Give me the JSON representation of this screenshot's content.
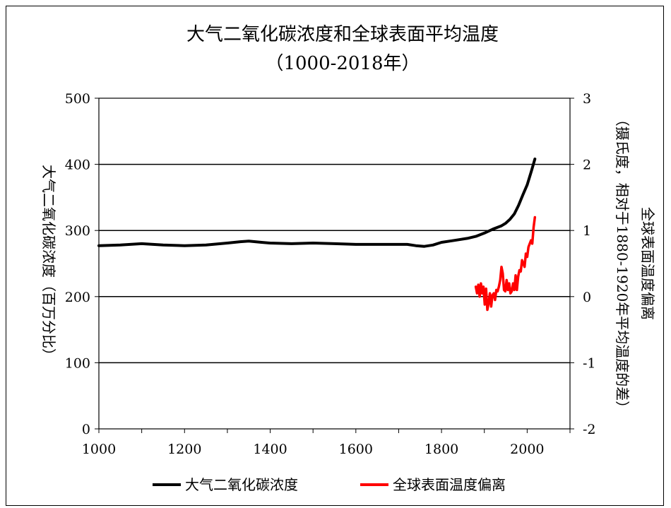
{
  "chart_data": {
    "type": "line",
    "title": "大气二氧化碳浓度和全球表面平均温度",
    "subtitle": "（1000-2018年）",
    "ylabel_left": "大气二氧化碳浓度（百万分比）",
    "ylabel_right": "全球表面温度偏离",
    "ylabel_right_2": "（摄氏度，相对于1880-1920年平均温度的差）",
    "x_ticks": [
      1000,
      1200,
      1400,
      1600,
      1800,
      2000
    ],
    "y_left_ticks": [
      0,
      100,
      200,
      300,
      400,
      500
    ],
    "y_right_ticks": [
      -2,
      -1,
      0,
      1,
      2,
      3
    ],
    "xlim": [
      1000,
      2100
    ],
    "ylim_left": [
      0,
      500
    ],
    "ylim_right": [
      -2,
      3
    ],
    "grid": "horizontal",
    "legend_position": "bottom",
    "series": [
      {
        "name": "大气二氧化碳浓度",
        "axis": "left",
        "color": "#000000",
        "x": [
          1000,
          1050,
          1100,
          1150,
          1200,
          1250,
          1300,
          1330,
          1350,
          1380,
          1400,
          1450,
          1500,
          1550,
          1600,
          1650,
          1700,
          1720,
          1740,
          1760,
          1780,
          1800,
          1820,
          1840,
          1860,
          1880,
          1900,
          1920,
          1940,
          1950,
          1960,
          1970,
          1980,
          1990,
          2000,
          2010,
          2018
        ],
        "values": [
          277,
          278,
          280,
          278,
          277,
          278,
          281,
          283,
          284,
          282,
          281,
          280,
          281,
          280,
          279,
          279,
          279,
          279,
          277,
          276,
          278,
          282,
          284,
          286,
          288,
          291,
          296,
          302,
          307,
          311,
          317,
          325,
          338,
          354,
          369,
          390,
          408
        ]
      },
      {
        "name": "全球表面温度偏离",
        "axis": "right",
        "color": "#ff0000",
        "x": [
          1880,
          1883,
          1886,
          1889,
          1892,
          1895,
          1898,
          1901,
          1904,
          1907,
          1910,
          1913,
          1916,
          1919,
          1922,
          1925,
          1928,
          1931,
          1934,
          1937,
          1940,
          1943,
          1946,
          1949,
          1952,
          1955,
          1958,
          1961,
          1964,
          1967,
          1970,
          1973,
          1976,
          1979,
          1982,
          1985,
          1988,
          1991,
          1994,
          1997,
          2000,
          2003,
          2006,
          2009,
          2012,
          2015,
          2018
        ],
        "values": [
          0.15,
          0.05,
          0.18,
          0.0,
          0.2,
          0.05,
          0.15,
          -0.12,
          0.12,
          -0.2,
          -0.1,
          0.05,
          -0.15,
          0.02,
          0.05,
          -0.05,
          0.1,
          0.08,
          0.15,
          0.25,
          0.45,
          0.35,
          0.1,
          0.08,
          0.25,
          0.1,
          0.2,
          0.05,
          0.08,
          0.2,
          0.1,
          0.32,
          0.1,
          0.3,
          0.4,
          0.38,
          0.55,
          0.5,
          0.45,
          0.65,
          0.6,
          0.75,
          0.8,
          0.85,
          0.8,
          1.05,
          1.2
        ]
      }
    ]
  }
}
